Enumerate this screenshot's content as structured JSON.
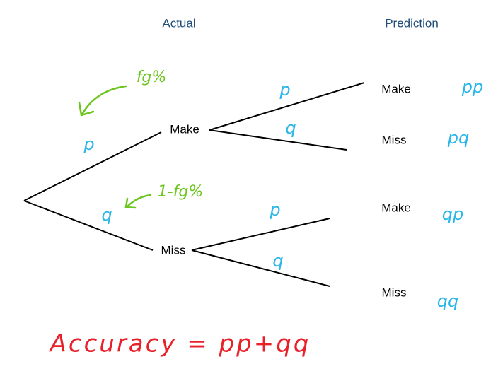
{
  "headers": {
    "actual": "Actual",
    "prediction": "Prediction"
  },
  "nodes": [
    {
      "label": "Make"
    },
    {
      "label": "Miss"
    }
  ],
  "branch_labels": [
    "p",
    "q",
    "p",
    "q",
    "p",
    "q"
  ],
  "outcomes": [
    {
      "label": "Make",
      "probability": "pp"
    },
    {
      "label": "Miss",
      "probability": "pq"
    },
    {
      "label": "Make",
      "probability": "qp"
    },
    {
      "label": "Miss",
      "probability": "qq"
    }
  ],
  "annotations": [
    "fg%",
    "1-fg%"
  ],
  "formula": "Accuracy = pp+qq"
}
